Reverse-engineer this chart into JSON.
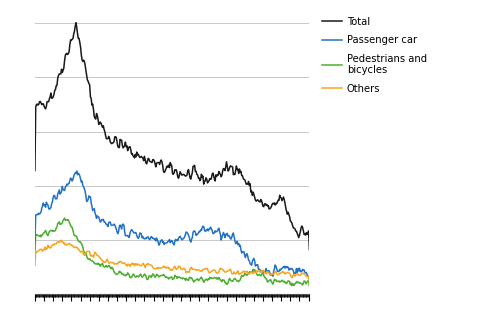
{
  "total_color": "#1a1a1a",
  "passenger_color": "#2472c8",
  "pedestrian_color": "#4caf30",
  "others_color": "#f5a623",
  "legend_labels": [
    "Total",
    "Passenger car",
    "Pedestrians and\nbicycles",
    "Others"
  ],
  "background_color": "#ffffff",
  "grid_color": "#c8c8c8",
  "ylim": [
    0,
    1050
  ],
  "n_months": 362,
  "noise_seed": 42
}
